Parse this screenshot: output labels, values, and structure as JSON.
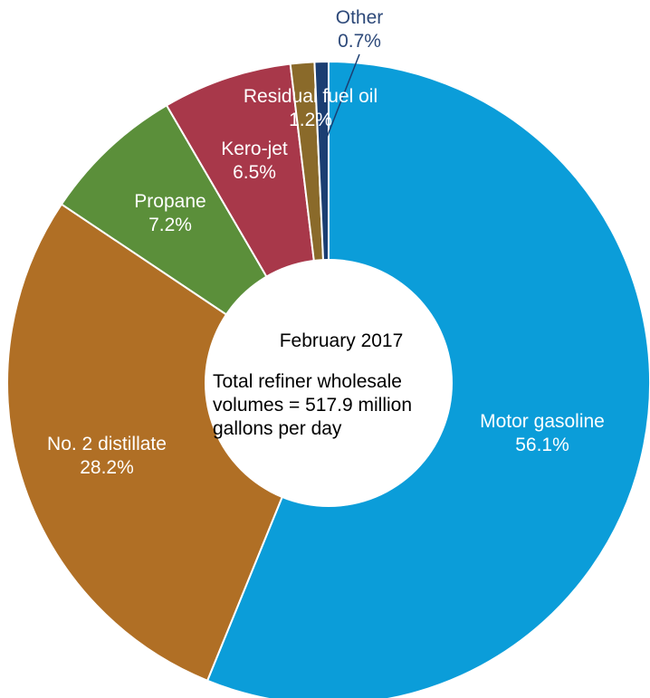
{
  "chart_data": {
    "type": "pie",
    "style": "donut",
    "center_text": {
      "line1": "February 2017",
      "line2": "Total refiner wholesale",
      "line3": "volumes = 517.9 million",
      "line4": "gallons per day"
    },
    "slices": [
      {
        "name": "Motor gasoline",
        "value": 56.1,
        "label": "56.1%",
        "color": "#0b9dd9"
      },
      {
        "name": "No. 2 distillate",
        "value": 28.2,
        "label": "28.2%",
        "color": "#b06f25"
      },
      {
        "name": "Propane",
        "value": 7.2,
        "label": "7.2%",
        "color": "#5b8f3a"
      },
      {
        "name": "Kero-jet",
        "value": 6.5,
        "label": "6.5%",
        "color": "#a8384a"
      },
      {
        "name": "Residual fuel oil",
        "value": 1.2,
        "label": "1.2%",
        "color": "#8a6a2a"
      },
      {
        "name": "Other",
        "value": 0.7,
        "label": "0.7%",
        "color": "#1b3e72"
      }
    ]
  }
}
